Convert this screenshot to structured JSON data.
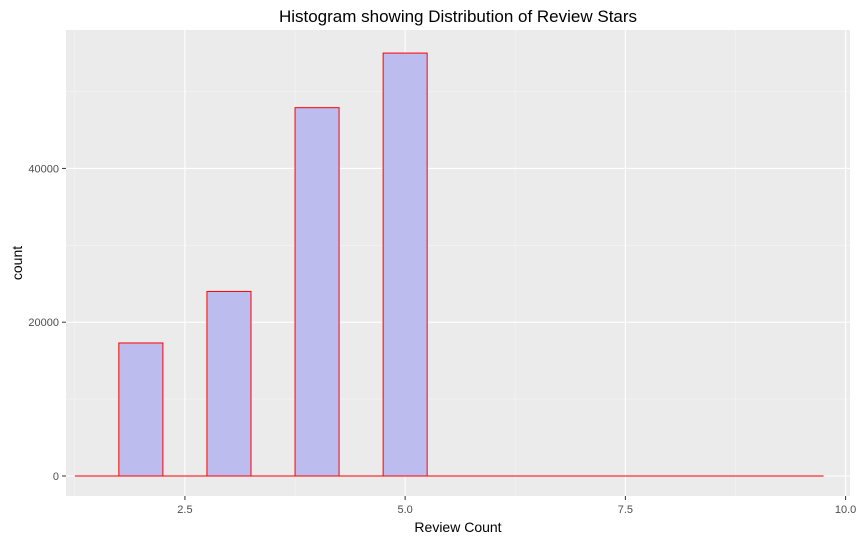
{
  "chart_data": {
    "type": "bar",
    "title": "Histogram showing Distribution of Review Stars",
    "xlabel": "Review Count",
    "ylabel": "count",
    "xlim": [
      1.15,
      10.05
    ],
    "ylim": [
      -2600,
      58000
    ],
    "x_ticks": [
      2.5,
      5.0,
      7.5,
      10.0
    ],
    "x_tick_labels": [
      "2.5",
      "5.0",
      "7.5",
      "10.0"
    ],
    "y_ticks": [
      0,
      20000,
      40000
    ],
    "y_tick_labels": [
      "0",
      "20000",
      "40000"
    ],
    "bin_width": 0.5,
    "bins": [
      {
        "x_start": 1.25,
        "x_end": 1.75,
        "count": 0
      },
      {
        "x_start": 1.75,
        "x_end": 2.25,
        "count": 17300
      },
      {
        "x_start": 2.25,
        "x_end": 2.75,
        "count": 0
      },
      {
        "x_start": 2.75,
        "x_end": 3.25,
        "count": 24000
      },
      {
        "x_start": 3.25,
        "x_end": 3.75,
        "count": 0
      },
      {
        "x_start": 3.75,
        "x_end": 4.25,
        "count": 47900
      },
      {
        "x_start": 4.25,
        "x_end": 4.75,
        "count": 0
      },
      {
        "x_start": 4.75,
        "x_end": 5.25,
        "count": 55000
      },
      {
        "x_start": 5.25,
        "x_end": 9.75,
        "count": 0
      }
    ],
    "grid": true,
    "legend": "none",
    "colors": {
      "panel_background": "#ebebeb",
      "grid_major": "#ffffff",
      "grid_minor": "#f5f5f5",
      "bar_fill": "#bcbcef",
      "bar_outline": "#ff0000"
    }
  }
}
